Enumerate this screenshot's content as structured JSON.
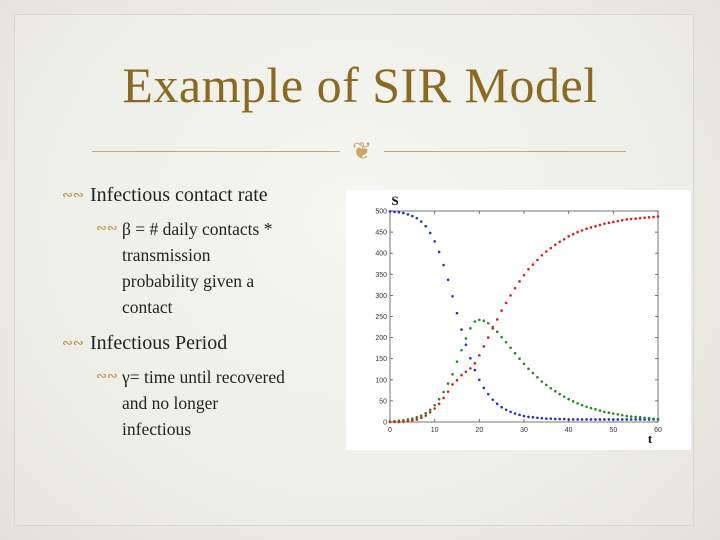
{
  "slide": {
    "title": "Example of SIR Model",
    "bullets": [
      {
        "text": "Infectious contact rate",
        "sub": [
          {
            "lines": [
              "β = # daily contacts *",
              "transmission",
              "probability given a",
              "contact"
            ]
          }
        ]
      },
      {
        "text": "Infectious Period",
        "sub": [
          {
            "lines": [
              "γ= time until recovered",
              "and no longer",
              "infectious"
            ]
          }
        ]
      }
    ]
  },
  "icons": {
    "bullet": "curly-bullet-icon",
    "divider": "curly-ornament-icon"
  },
  "colors": {
    "title": "#8a6a22",
    "accent": "#c9a76a",
    "susceptible": "#1f2fd6",
    "infected": "#1e8c1e",
    "recovered": "#d81e1e"
  },
  "chart_data": {
    "type": "scatter",
    "xlabel": "t",
    "ylabel": "S",
    "xlim": [
      0,
      60
    ],
    "ylim": [
      0,
      500
    ],
    "xticks": [
      0,
      10,
      20,
      30,
      40,
      50,
      60
    ],
    "yticks": [
      0,
      50,
      100,
      150,
      200,
      250,
      300,
      350,
      400,
      450,
      500
    ],
    "x": [
      0,
      1,
      2,
      3,
      4,
      5,
      6,
      7,
      8,
      9,
      10,
      11,
      12,
      13,
      14,
      15,
      16,
      17,
      18,
      19,
      20,
      21,
      22,
      23,
      24,
      25,
      26,
      27,
      28,
      29,
      30,
      31,
      32,
      33,
      34,
      35,
      36,
      37,
      38,
      39,
      40,
      41,
      42,
      43,
      44,
      45,
      46,
      47,
      48,
      49,
      50,
      51,
      52,
      53,
      54,
      55,
      56,
      57,
      58,
      59,
      60
    ],
    "series": [
      {
        "color": "#1f2fd6",
        "values": [
          499,
          498,
          497,
          495,
          492,
          488,
          483,
          475,
          464,
          448,
          428,
          403,
          372,
          337,
          298,
          258,
          219,
          183,
          151,
          123,
          100,
          81,
          66,
          53,
          43,
          35,
          29,
          24,
          20,
          17,
          14,
          12,
          11,
          10,
          9,
          8,
          8,
          7,
          7,
          7,
          6,
          6,
          6,
          6,
          6,
          6,
          6,
          6,
          6,
          6,
          6,
          6,
          6,
          6,
          6,
          6,
          6,
          6,
          6,
          6,
          6
        ]
      },
      {
        "color": "#1e8c1e",
        "values": [
          1,
          2,
          3,
          4,
          6,
          8,
          11,
          15,
          21,
          29,
          40,
          54,
          71,
          91,
          113,
          143,
          170,
          198,
          222,
          238,
          242,
          240,
          234,
          225,
          214,
          201,
          189,
          176,
          163,
          150,
          138,
          126,
          116,
          106,
          96,
          88,
          80,
          73,
          66,
          60,
          54,
          49,
          44,
          40,
          36,
          33,
          30,
          27,
          24,
          22,
          20,
          18,
          16,
          14,
          13,
          12,
          11,
          10,
          9,
          8,
          7
        ]
      },
      {
        "color": "#d81e1e",
        "values": [
          0,
          0,
          0,
          1,
          2,
          4,
          6,
          10,
          15,
          23,
          32,
          43,
          57,
          72,
          89,
          99,
          111,
          119,
          127,
          139,
          158,
          179,
          200,
          222,
          243,
          264,
          282,
          300,
          317,
          333,
          348,
          362,
          373,
          384,
          395,
          404,
          412,
          420,
          427,
          433,
          440,
          445,
          450,
          454,
          458,
          461,
          464,
          467,
          470,
          472,
          474,
          476,
          478,
          480,
          481,
          482,
          483,
          484,
          485,
          486,
          487
        ]
      }
    ]
  }
}
